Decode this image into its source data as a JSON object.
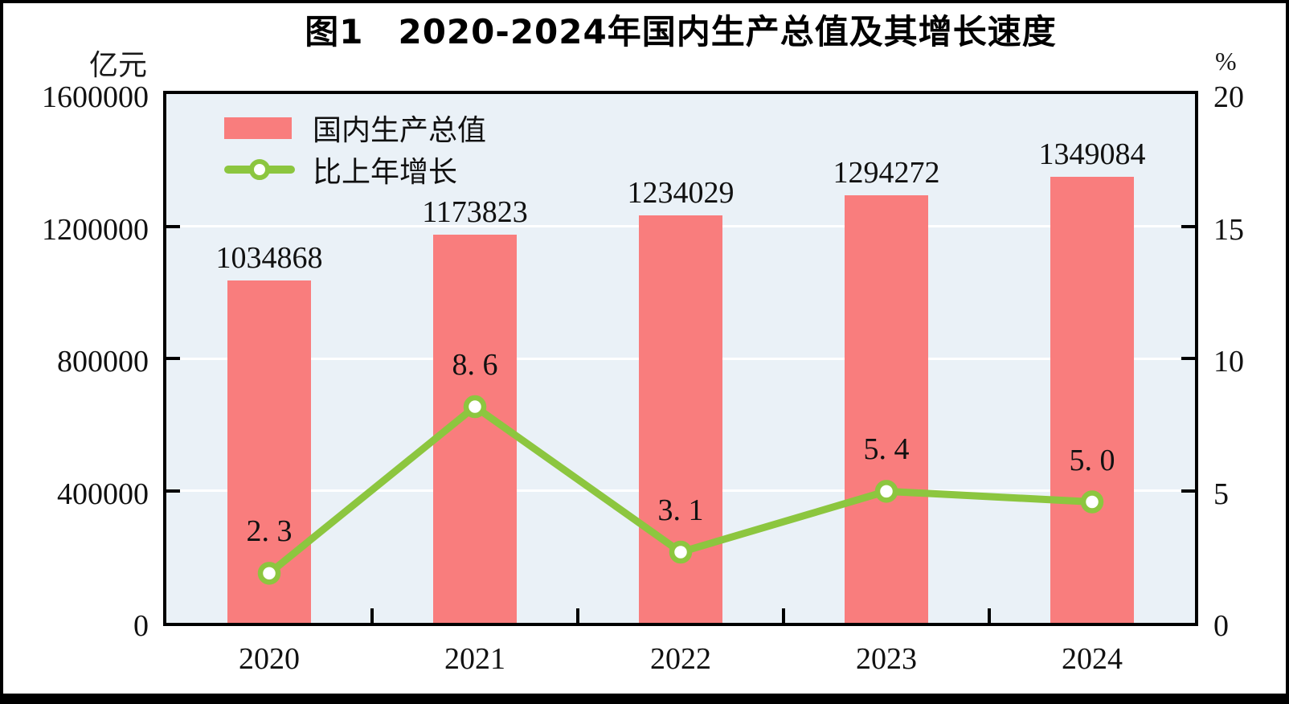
{
  "title": "图1　2020-2024年国内生产总值及其增长速度",
  "chart_data": {
    "type": "bar+line",
    "title": "图1　2020-2024年国内生产总值及其增长速度",
    "categories": [
      "2020",
      "2021",
      "2022",
      "2023",
      "2024"
    ],
    "series": [
      {
        "name": "国内生产总值",
        "type": "bar",
        "axis": "left",
        "values": [
          1034868,
          1173823,
          1234029,
          1294272,
          1349084
        ],
        "labels": [
          "1034868",
          "1173823",
          "1234029",
          "1294272",
          "1349084"
        ],
        "color": "#f97d7d"
      },
      {
        "name": "比上年增长",
        "type": "line",
        "axis": "right",
        "values": [
          2.3,
          8.6,
          3.1,
          5.4,
          5.0
        ],
        "labels": [
          "2. 3",
          "8. 6",
          "3. 1",
          "5. 4",
          "5. 0"
        ],
        "color": "#8cc63f"
      }
    ],
    "left_axis": {
      "unit": "亿元",
      "ticks": [
        "1600000",
        "1200000",
        "800000",
        "400000",
        "0"
      ],
      "min": 0,
      "max": 1600000
    },
    "right_axis": {
      "unit": "%",
      "ticks": [
        "20",
        "15",
        "10",
        "5",
        "0"
      ],
      "min": 0,
      "max": 20
    },
    "legend_position": "top-left",
    "grid": true,
    "colors": {
      "plot_background": "#eaf1f7",
      "gridline": "#ffffff",
      "frame": "#000000",
      "text": "#1a1a1a"
    }
  }
}
